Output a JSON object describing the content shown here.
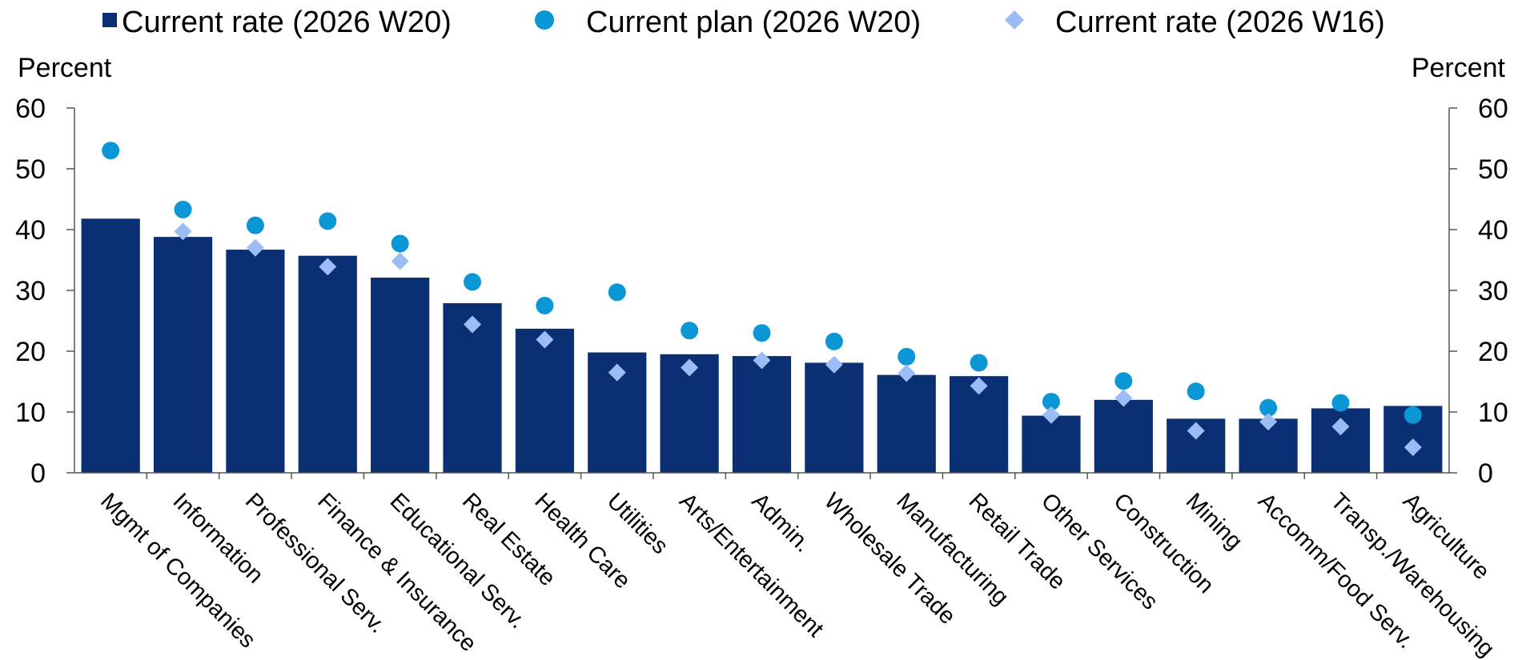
{
  "chart_data": {
    "type": "bar",
    "left_axis_title": "Percent",
    "right_axis_title": "Percent",
    "ylim": [
      0,
      60
    ],
    "yticks": [
      "0",
      "10",
      "20",
      "30",
      "40",
      "50",
      "60"
    ],
    "grid": false,
    "legend_position": "top",
    "categories": [
      "Mgmt of Companies",
      "Information",
      "Professional Serv.",
      "Finance & Insurance",
      "Educational Serv.",
      "Real Estate",
      "Health Care",
      "Utilities",
      "Arts/Entertainment",
      "Admin.",
      "Wholesale Trade",
      "Manufacturing",
      "Retail Trade",
      "Other Services",
      "Construction",
      "Mining",
      "Accomm/Food Serv.",
      "Transp./Warehousing",
      "Agriculture"
    ],
    "series": [
      {
        "name": "Current rate (2026 W20)",
        "mark": "bar",
        "color": "#0b2f73",
        "values": [
          41.8,
          38.8,
          36.7,
          35.7,
          32.1,
          27.9,
          23.7,
          19.8,
          19.5,
          19.2,
          18.1,
          16.1,
          15.9,
          9.4,
          12.0,
          8.9,
          8.9,
          10.6,
          11.0
        ]
      },
      {
        "name": "Current plan (2026 W20)",
        "mark": "circle",
        "color": "#0b97d6",
        "values": [
          53.0,
          43.3,
          40.7,
          41.4,
          37.7,
          31.4,
          27.5,
          29.7,
          23.4,
          23.0,
          21.6,
          19.1,
          18.1,
          11.7,
          15.1,
          13.4,
          10.7,
          11.5,
          9.5
        ]
      },
      {
        "name": "Current rate (2026 W16)",
        "mark": "diamond",
        "color": "#9bbcf5",
        "values": [
          null,
          39.7,
          37.0,
          33.9,
          34.8,
          24.4,
          21.9,
          16.5,
          17.3,
          18.5,
          17.8,
          16.4,
          14.3,
          9.5,
          12.3,
          6.9,
          8.4,
          7.6,
          4.2
        ]
      }
    ]
  }
}
